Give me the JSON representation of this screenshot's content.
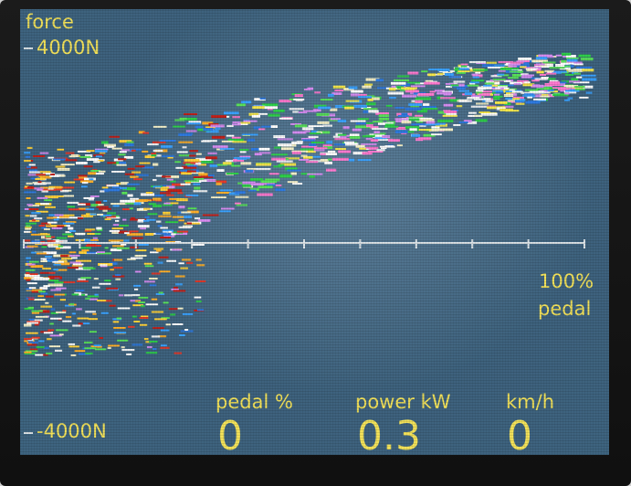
{
  "axis": {
    "y_label": "force",
    "y_max_label": "4000N",
    "y_min_label": "-4000N",
    "x_max_label": "100%",
    "x_label": "pedal"
  },
  "readouts": [
    {
      "label": "pedal %",
      "value": "0"
    },
    {
      "label": "power kW",
      "value": "0.3"
    },
    {
      "label": "km/h",
      "value": "0"
    }
  ],
  "colors": {
    "text": "#f3e25a",
    "background": "#3e6480",
    "axis": "#dfe6ea"
  }
}
